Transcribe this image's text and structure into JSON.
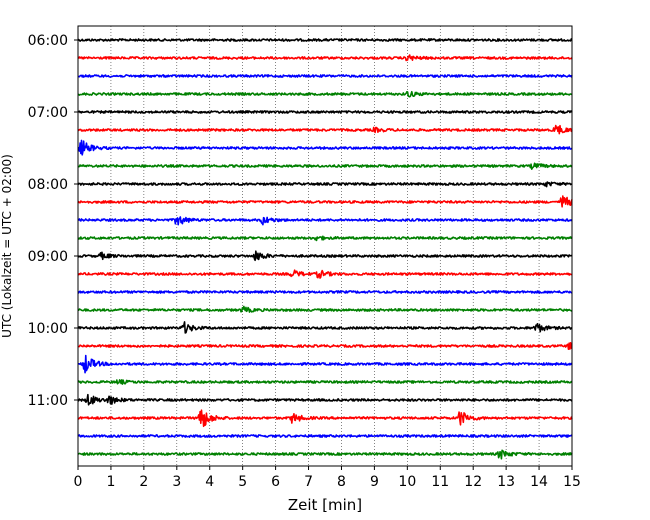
{
  "chart_data": {
    "type": "line",
    "description_kind": "helicorder",
    "xlabel": "Zeit  [min]",
    "ylabel": "UTC (Lokalzeit = UTC + 02:00)",
    "xlim": [
      0,
      15
    ],
    "x_ticks": [
      0,
      1,
      2,
      3,
      4,
      5,
      6,
      7,
      8,
      9,
      10,
      11,
      12,
      13,
      14,
      15
    ],
    "x_tick_labels": [
      "0",
      "1",
      "2",
      "3",
      "4",
      "5",
      "6",
      "7",
      "8",
      "9",
      "10",
      "11",
      "12",
      "13",
      "14",
      "15"
    ],
    "y_tick_labels": [
      "06:00",
      "07:00",
      "08:00",
      "09:00",
      "10:00",
      "11:00"
    ],
    "grid": "vertical dotted",
    "color_cycle": [
      "#000000",
      "#ff0000",
      "#0000ff",
      "#008000"
    ],
    "trace_starts": [
      "06:00",
      "06:15",
      "06:30",
      "06:45",
      "07:00",
      "07:15",
      "07:30",
      "07:45",
      "08:00",
      "08:15",
      "08:30",
      "08:45",
      "09:00",
      "09:15",
      "09:30",
      "09:45",
      "10:00",
      "10:15",
      "10:30",
      "10:45",
      "11:00",
      "11:15",
      "11:30",
      "11:45"
    ],
    "series": [
      {
        "start": "06:00",
        "color": "#000000",
        "events": []
      },
      {
        "start": "06:15",
        "color": "#ff0000",
        "events": [
          {
            "t": 10.0,
            "amp": 3
          }
        ]
      },
      {
        "start": "06:30",
        "color": "#0000ff",
        "events": []
      },
      {
        "start": "06:45",
        "color": "#008000",
        "events": [
          {
            "t": 10.0,
            "amp": 3
          }
        ]
      },
      {
        "start": "07:00",
        "color": "#000000",
        "events": []
      },
      {
        "start": "07:15",
        "color": "#ff0000",
        "events": [
          {
            "t": 9.0,
            "amp": 2
          },
          {
            "t": 14.5,
            "amp": 6
          }
        ]
      },
      {
        "start": "07:30",
        "color": "#0000ff",
        "events": [
          {
            "t": 0.1,
            "amp": 8
          }
        ]
      },
      {
        "start": "07:45",
        "color": "#008000",
        "events": [
          {
            "t": 13.8,
            "amp": 3
          }
        ]
      },
      {
        "start": "08:00",
        "color": "#000000",
        "events": [
          {
            "t": 14.2,
            "amp": 2
          }
        ]
      },
      {
        "start": "08:15",
        "color": "#ff0000",
        "events": [
          {
            "t": 14.7,
            "amp": 7
          }
        ]
      },
      {
        "start": "08:30",
        "color": "#0000ff",
        "events": [
          {
            "t": 3.0,
            "amp": 6
          },
          {
            "t": 5.6,
            "amp": 4
          }
        ]
      },
      {
        "start": "08:45",
        "color": "#008000",
        "events": [
          {
            "t": 7.2,
            "amp": 2
          }
        ]
      },
      {
        "start": "09:00",
        "color": "#000000",
        "events": [
          {
            "t": 0.7,
            "amp": 3
          },
          {
            "t": 5.4,
            "amp": 5
          }
        ]
      },
      {
        "start": "09:15",
        "color": "#ff0000",
        "events": [
          {
            "t": 6.5,
            "amp": 4
          },
          {
            "t": 7.3,
            "amp": 4
          }
        ]
      },
      {
        "start": "09:30",
        "color": "#0000ff",
        "events": []
      },
      {
        "start": "09:45",
        "color": "#008000",
        "events": [
          {
            "t": 5.0,
            "amp": 3
          }
        ]
      },
      {
        "start": "10:00",
        "color": "#000000",
        "events": [
          {
            "t": 3.2,
            "amp": 6
          },
          {
            "t": 13.9,
            "amp": 5
          }
        ]
      },
      {
        "start": "10:15",
        "color": "#ff0000",
        "events": [
          {
            "t": 14.9,
            "amp": 3
          }
        ]
      },
      {
        "start": "10:30",
        "color": "#0000ff",
        "events": [
          {
            "t": 0.2,
            "amp": 10
          }
        ]
      },
      {
        "start": "10:45",
        "color": "#008000",
        "events": [
          {
            "t": 1.2,
            "amp": 2
          }
        ]
      },
      {
        "start": "11:00",
        "color": "#000000",
        "events": [
          {
            "t": 0.3,
            "amp": 6
          },
          {
            "t": 0.9,
            "amp": 5
          }
        ]
      },
      {
        "start": "11:15",
        "color": "#ff0000",
        "events": [
          {
            "t": 3.7,
            "amp": 14
          },
          {
            "t": 6.5,
            "amp": 5
          },
          {
            "t": 11.6,
            "amp": 8
          }
        ]
      },
      {
        "start": "11:30",
        "color": "#0000ff",
        "events": []
      },
      {
        "start": "11:45",
        "color": "#008000",
        "events": [
          {
            "t": 12.8,
            "amp": 5
          }
        ]
      }
    ]
  }
}
